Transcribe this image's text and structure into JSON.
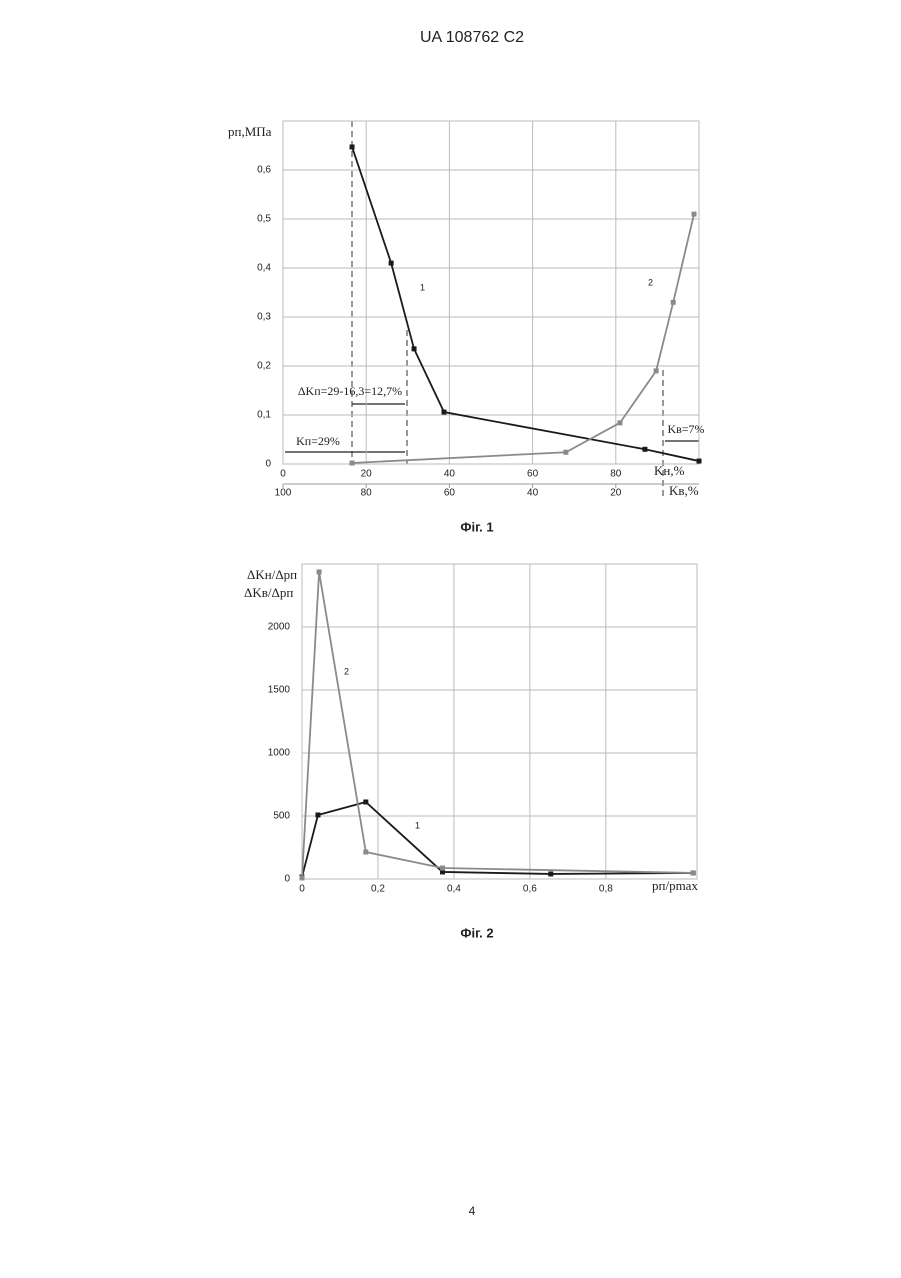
{
  "header": "UA   108762   C2",
  "page_number": "4",
  "chart_data": [
    {
      "type": "line",
      "caption": "Фіг. 1",
      "y_label": "pп,МПа",
      "x_label": "Kн,%",
      "x2_label": "Kв,%",
      "xlim": [
        0,
        100
      ],
      "xticks": [
        0,
        20,
        40,
        60,
        80
      ],
      "x2lim": [
        100,
        0
      ],
      "x2ticks": [
        100,
        80,
        60,
        40,
        20
      ],
      "ylim": [
        0,
        0.7
      ],
      "yticks": [
        0,
        {
          "value": 0.1,
          "label": "0,1"
        },
        {
          "value": 0.2,
          "label": "0,2"
        },
        {
          "value": 0.3,
          "label": "0,3"
        },
        {
          "value": 0.4,
          "label": "0,4"
        },
        {
          "value": 0.5,
          "label": "0,5"
        },
        {
          "value": 0.6,
          "label": "0,6"
        }
      ],
      "grid": true,
      "series": [
        {
          "name": "1",
          "color": "#1a1a1a",
          "x": [
            16.6,
            26,
            31.5,
            38.7,
            87,
            100
          ],
          "values": [
            0.647,
            0.41,
            0.235,
            0.106,
            0.03,
            0.006
          ]
        },
        {
          "name": "2",
          "color": "#8a8a8a",
          "x": [
            16.6,
            68,
            81,
            89.7,
            93.8,
            98.8
          ],
          "values": [
            0.002,
            0.024,
            0.084,
            0.19,
            0.33,
            0.51
          ]
        }
      ],
      "annotations": [
        "ΔKп=29-16,3=12,7%",
        "Kп=29%",
        "Kв=7%"
      ]
    },
    {
      "type": "line",
      "caption": "Фіг. 2",
      "y_label": "ΔKн/Δpп",
      "y_label_2": "ΔKв/Δpп",
      "x_label": "pп/pmax",
      "xlim": [
        0,
        1.04
      ],
      "xticks": [
        0,
        {
          "value": 0.2,
          "label": "0,2"
        },
        {
          "value": 0.4,
          "label": "0,4"
        },
        {
          "value": 0.6,
          "label": "0,6"
        },
        {
          "value": 0.8,
          "label": "0,8"
        }
      ],
      "ylim": [
        0,
        2500
      ],
      "yticks": [
        0,
        500,
        1000,
        1500,
        2000
      ],
      "grid": true,
      "series": [
        {
          "name": "1",
          "color": "#1a1a1a",
          "x": [
            0,
            0.042,
            0.168,
            0.37,
            0.655,
            1.03
          ],
          "values": [
            16,
            508,
            611,
            56,
            40,
            48
          ]
        },
        {
          "name": "2",
          "color": "#8a8a8a",
          "x": [
            0,
            0.045,
            0.168,
            0.37,
            1.03
          ],
          "values": [
            8,
            2437,
            214,
            87,
            48
          ]
        }
      ]
    }
  ]
}
